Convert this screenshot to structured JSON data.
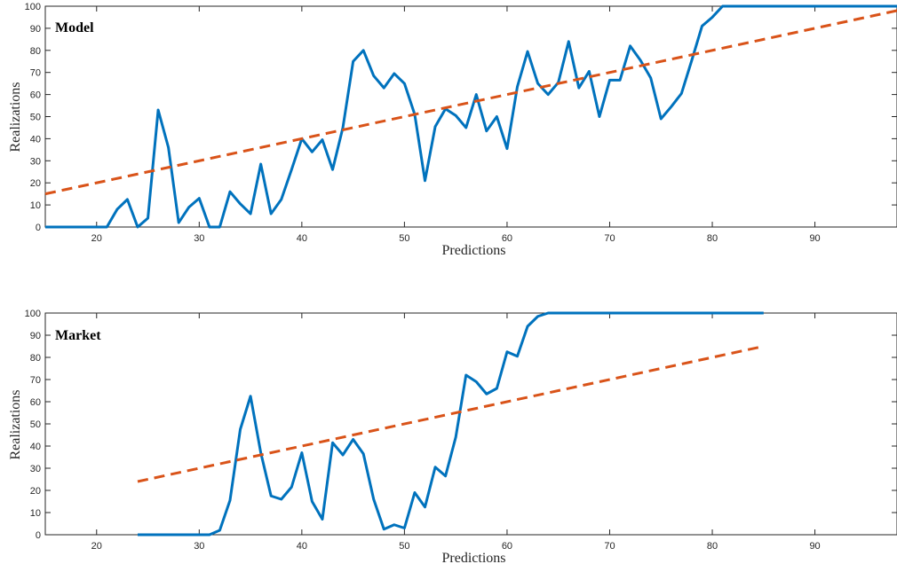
{
  "chart_data": [
    {
      "type": "line",
      "title": "Model",
      "xlabel": "Predictions",
      "ylabel": "Realizations",
      "xlim": [
        15,
        98
      ],
      "ylim": [
        0,
        100
      ],
      "xticks": [
        20,
        30,
        40,
        50,
        60,
        70,
        80,
        90
      ],
      "yticks": [
        0,
        10,
        20,
        30,
        40,
        50,
        60,
        70,
        80,
        90,
        100
      ],
      "grid": false,
      "colors": {
        "realized": "#0072BD",
        "fit": "#D95319"
      },
      "series": [
        {
          "style": "solid",
          "x": [
            15,
            16,
            17,
            18,
            19,
            20,
            21,
            22,
            23,
            24,
            25,
            26,
            27,
            28,
            29,
            30,
            31,
            32,
            33,
            34,
            35,
            36,
            37,
            38,
            39,
            40,
            41,
            42,
            43,
            44,
            45,
            46,
            47,
            48,
            49,
            50,
            51,
            52,
            53,
            54,
            55,
            56,
            57,
            58,
            59,
            60,
            61,
            62,
            63,
            64,
            65,
            66,
            67,
            68,
            69,
            70,
            71,
            72,
            73,
            74,
            75,
            76,
            77,
            78,
            79,
            80,
            81,
            82,
            83,
            84,
            85,
            86,
            87,
            88,
            89,
            90,
            91,
            92,
            93,
            94,
            95,
            96,
            97,
            98
          ],
          "y": [
            0,
            0,
            0,
            0,
            0,
            0,
            0,
            8,
            12.5,
            0,
            4,
            53,
            36,
            2,
            9,
            13,
            0,
            0,
            16,
            10.5,
            6,
            28.5,
            6,
            12.5,
            26,
            40,
            34,
            39.5,
            26,
            45,
            75,
            80,
            68.5,
            63,
            69.5,
            65,
            51,
            21,
            45.5,
            53.5,
            50.5,
            45,
            60,
            43.5,
            50,
            35.5,
            63.5,
            79.5,
            65,
            60,
            65.5,
            84,
            63,
            70.5,
            50,
            66.5,
            66.5,
            82,
            75.5,
            67.5,
            49,
            54.5,
            60.5,
            75.5,
            91,
            95,
            100,
            100,
            100,
            100,
            100,
            100,
            100,
            100,
            100,
            100,
            100,
            100,
            100,
            100,
            100,
            100,
            100,
            100
          ]
        },
        {
          "style": "dashed",
          "x": [
            15,
            98
          ],
          "y": [
            15,
            98
          ]
        }
      ]
    },
    {
      "type": "line",
      "title": "Market",
      "xlabel": "Predictions",
      "ylabel": "Realizations",
      "xlim": [
        15,
        98
      ],
      "ylim": [
        0,
        100
      ],
      "xticks": [
        20,
        30,
        40,
        50,
        60,
        70,
        80,
        90
      ],
      "yticks": [
        0,
        10,
        20,
        30,
        40,
        50,
        60,
        70,
        80,
        90,
        100
      ],
      "grid": false,
      "colors": {
        "realized": "#0072BD",
        "fit": "#D95319"
      },
      "series": [
        {
          "style": "solid",
          "x": [
            24,
            25,
            26,
            27,
            28,
            29,
            30,
            31,
            32,
            33,
            34,
            35,
            36,
            37,
            38,
            39,
            40,
            41,
            42,
            43,
            44,
            45,
            46,
            47,
            48,
            49,
            50,
            51,
            52,
            53,
            54,
            55,
            56,
            57,
            58,
            59,
            60,
            61,
            62,
            63,
            64,
            65,
            66,
            67,
            68,
            69,
            70,
            71,
            72,
            73,
            74,
            75,
            76,
            77,
            78,
            79,
            80,
            81,
            82,
            83,
            84,
            85
          ],
          "y": [
            0,
            0,
            0,
            0,
            0,
            0,
            0,
            0,
            2,
            15.5,
            47.5,
            62.5,
            37,
            17.5,
            16,
            21.5,
            37,
            15,
            7,
            41.5,
            36,
            43,
            36.5,
            16,
            2.5,
            4.5,
            3,
            19,
            12.5,
            30.5,
            26.5,
            44,
            72,
            69,
            63.5,
            66,
            82.5,
            80.5,
            94,
            98.5,
            100,
            100,
            100,
            100,
            100,
            100,
            100,
            100,
            100,
            100,
            100,
            100,
            100,
            100,
            100,
            100,
            100,
            100,
            100,
            100,
            100,
            100
          ]
        },
        {
          "style": "dashed",
          "x": [
            24,
            85
          ],
          "y": [
            24,
            85
          ]
        }
      ]
    }
  ]
}
